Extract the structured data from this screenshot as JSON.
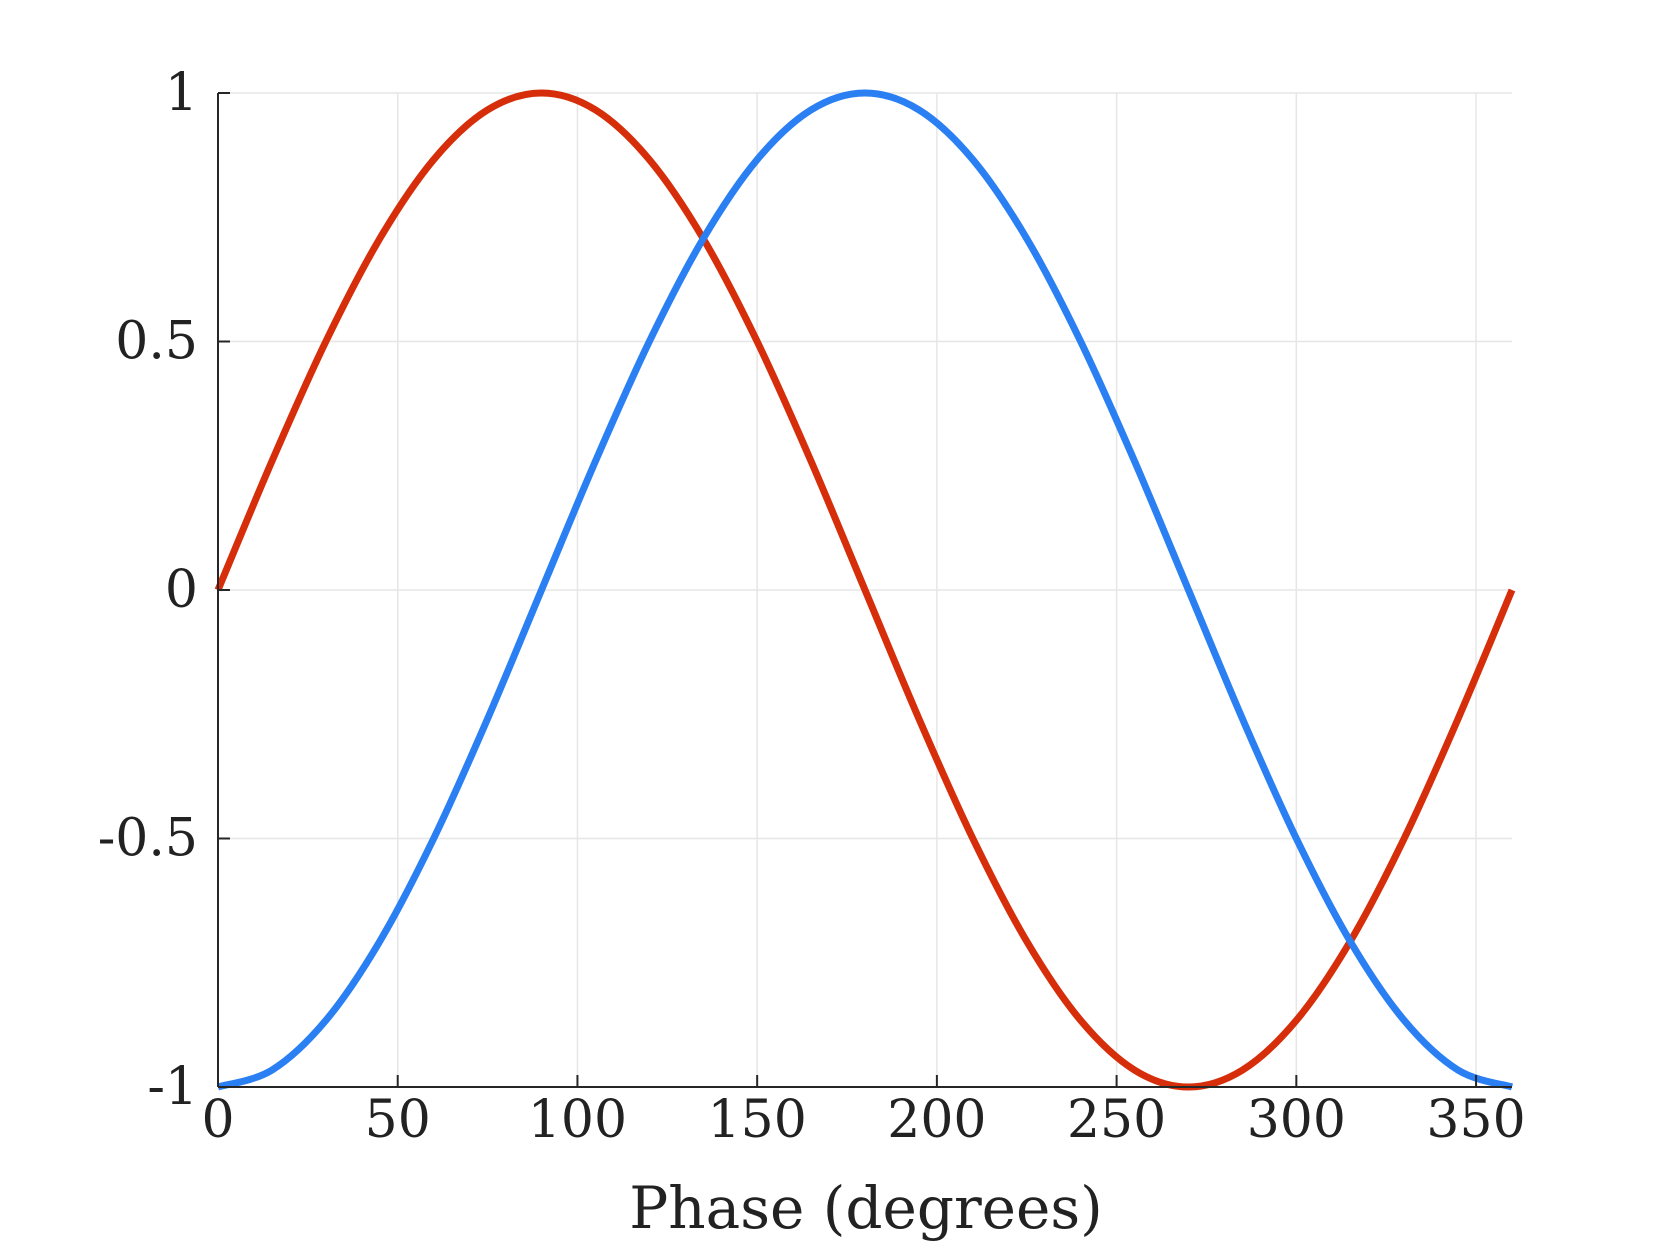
{
  "chart_data": {
    "type": "line",
    "title": "",
    "xlabel": "Phase (degrees)",
    "ylabel": "",
    "xlim": [
      0,
      360
    ],
    "ylim": [
      -1,
      1
    ],
    "xticks": [
      0,
      50,
      100,
      150,
      200,
      250,
      300,
      350
    ],
    "xtick_labels": [
      "0",
      "50",
      "100",
      "150",
      "200",
      "250",
      "300",
      "350"
    ],
    "yticks": [
      1,
      0.5,
      0,
      -0.5,
      -1
    ],
    "ytick_labels": [
      "1",
      "0.5",
      "0",
      "-0.5",
      "-1"
    ],
    "grid": true,
    "x": [
      0,
      15,
      30,
      45,
      60,
      75,
      90,
      105,
      120,
      135,
      150,
      165,
      180,
      195,
      210,
      225,
      240,
      255,
      270,
      285,
      300,
      315,
      330,
      345,
      360
    ],
    "series": [
      {
        "color": "#d62e0a",
        "values": [
          0,
          0.259,
          0.5,
          0.707,
          0.866,
          0.966,
          1,
          0.966,
          0.866,
          0.707,
          0.5,
          0.259,
          0,
          -0.259,
          -0.5,
          -0.707,
          -0.866,
          -0.966,
          -1,
          -0.966,
          -0.866,
          -0.707,
          -0.5,
          -0.259,
          0
        ]
      },
      {
        "color": "#2a7ff2",
        "values": [
          -1,
          -0.966,
          -0.866,
          -0.707,
          -0.5,
          -0.259,
          0,
          0.259,
          0.5,
          0.707,
          0.866,
          0.966,
          1,
          0.966,
          0.866,
          0.707,
          0.5,
          0.259,
          0,
          -0.259,
          -0.5,
          -0.707,
          -0.866,
          -0.966,
          -1
        ]
      }
    ]
  }
}
